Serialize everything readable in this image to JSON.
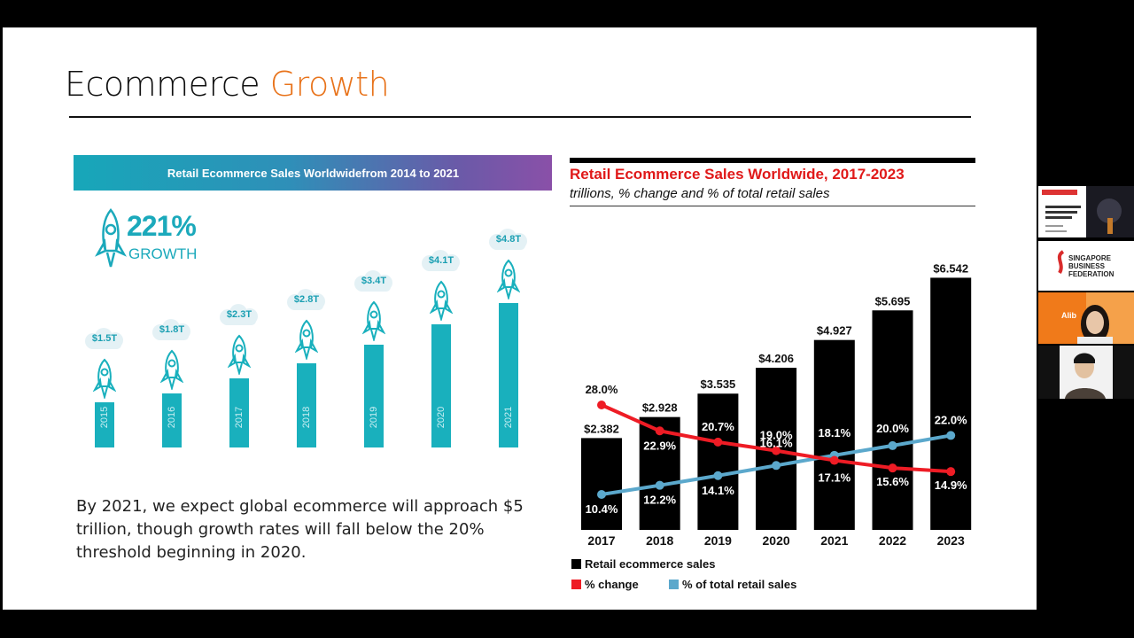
{
  "slide": {
    "title_main": "Ecommerce ",
    "title_accent": "Growth",
    "caption": "By 2021, we expect global ecommerce will approach $5 trillion, though growth rates will fall below the 20% threshold beginning in 2020."
  },
  "left_infographic": {
    "header": "Retail Ecommerce Sales Worldwidefrom 2014 to 2021",
    "growth_pct": "221%",
    "growth_word": "GROWTH",
    "accent_color": "#19b0bd",
    "bars": [
      {
        "year": "2015",
        "label": "$1.5T",
        "value": 1.5
      },
      {
        "year": "2016",
        "label": "$1.8T",
        "value": 1.8
      },
      {
        "year": "2017",
        "label": "$2.3T",
        "value": 2.3
      },
      {
        "year": "2018",
        "label": "$2.8T",
        "value": 2.8
      },
      {
        "year": "2019",
        "label": "$3.4T",
        "value": 3.4
      },
      {
        "year": "2020",
        "label": "$4.1T",
        "value": 4.1
      },
      {
        "year": "2021",
        "label": "$4.8T",
        "value": 4.8
      }
    ]
  },
  "chart_data": {
    "type": "bar",
    "title": "Retail Ecommerce Sales Worldwide, 2017-2023",
    "subtitle": "trillions, % change and % of total retail sales",
    "categories": [
      "2017",
      "2018",
      "2019",
      "2020",
      "2021",
      "2022",
      "2023"
    ],
    "series": [
      {
        "name": "Retail ecommerce sales",
        "kind": "bar",
        "color": "#000000",
        "values": [
          2.382,
          2.928,
          3.535,
          4.206,
          4.927,
          5.695,
          6.542
        ],
        "labels": [
          "$2.382",
          "$2.928",
          "$3.535",
          "$4.206",
          "$4.927",
          "$5.695",
          "$6.542"
        ]
      },
      {
        "name": "% change",
        "kind": "line",
        "color": "#ee1c25",
        "values": [
          28.0,
          22.9,
          20.7,
          19.0,
          17.1,
          15.6,
          14.9
        ],
        "labels": [
          "28.0%",
          "22.9%",
          "20.7%",
          "19.0%",
          "17.1%",
          "15.6%",
          "14.9%"
        ]
      },
      {
        "name": "% of total retail sales",
        "kind": "line",
        "color": "#5ba8cc",
        "values": [
          10.4,
          12.2,
          14.1,
          16.1,
          18.1,
          20.0,
          22.0
        ],
        "labels": [
          "10.4%",
          "12.2%",
          "14.1%",
          "16.1%",
          "18.1%",
          "20.0%",
          "22.0%"
        ]
      }
    ],
    "legend_position": "bottom-left"
  },
  "video_sidebar": {
    "thumbnails": [
      "shared-slide-thumbnail",
      "sbf-logo-thumbnail",
      "presenter-video",
      "participant-video"
    ],
    "sbf_logo_text": "SINGAPORE BUSINESS FEDERATION",
    "presenter_name_tag": "Alib"
  }
}
